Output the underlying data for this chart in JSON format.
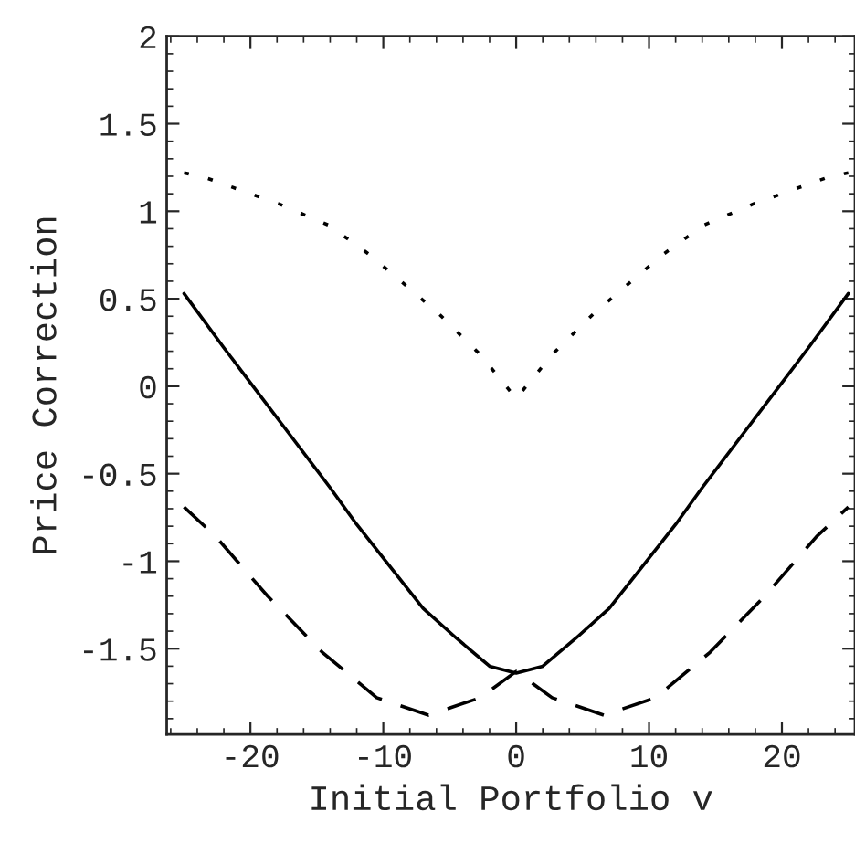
{
  "chart_data": {
    "type": "line",
    "xlabel": "Initial Portfolio v",
    "ylabel": "Price Correction",
    "xlim": [
      -26.3,
      25.5
    ],
    "ylim": [
      -1.99,
      2
    ],
    "xticks": [
      -20,
      -10,
      0,
      10,
      20
    ],
    "yticks": [
      -1.5,
      -1,
      -0.5,
      0,
      0.5,
      1,
      1.5,
      2
    ],
    "series": [
      {
        "color": "#000000",
        "line_style": "solid",
        "x": [
          -25,
          -22,
          -20,
          -17,
          -14,
          -12,
          -9.6,
          -7,
          -4.5,
          -2,
          0,
          2,
          4.5,
          7,
          9.6,
          12,
          14,
          17,
          20,
          22,
          25
        ],
        "values": [
          0.53,
          0.22,
          0.02,
          -0.28,
          -0.58,
          -0.79,
          -1.02,
          -1.27,
          -1.44,
          -1.6,
          -1.64,
          -1.6,
          -1.44,
          -1.27,
          -1.02,
          -0.79,
          -0.58,
          -0.28,
          0.02,
          0.22,
          0.53
        ]
      },
      {
        "color": "#000000",
        "line_style": "dotted",
        "x": [
          -25,
          -23.3,
          -17.8,
          -14.1,
          -11,
          -5.9,
          -2.7,
          0,
          2.7,
          5.9,
          11,
          14.1,
          17.8,
          23.3,
          25
        ],
        "values": [
          1.22,
          1.19,
          1.04,
          0.92,
          0.75,
          0.42,
          0.18,
          -0.07,
          0.18,
          0.42,
          0.75,
          0.92,
          1.04,
          1.19,
          1.22
        ]
      },
      {
        "color": "#000000",
        "line_style": "dashed",
        "x": [
          -25,
          -22.6,
          -18.7,
          -14.6,
          -10.5,
          -6.6,
          -2.7,
          0,
          2.7,
          6.6,
          10.5,
          14.6,
          18.7,
          22.6,
          25
        ],
        "values": [
          -0.69,
          -0.86,
          -1.2,
          -1.52,
          -1.78,
          -1.88,
          -1.78,
          -1.63,
          -1.78,
          -1.88,
          -1.78,
          -1.52,
          -1.2,
          -0.86,
          -0.69
        ]
      }
    ]
  }
}
